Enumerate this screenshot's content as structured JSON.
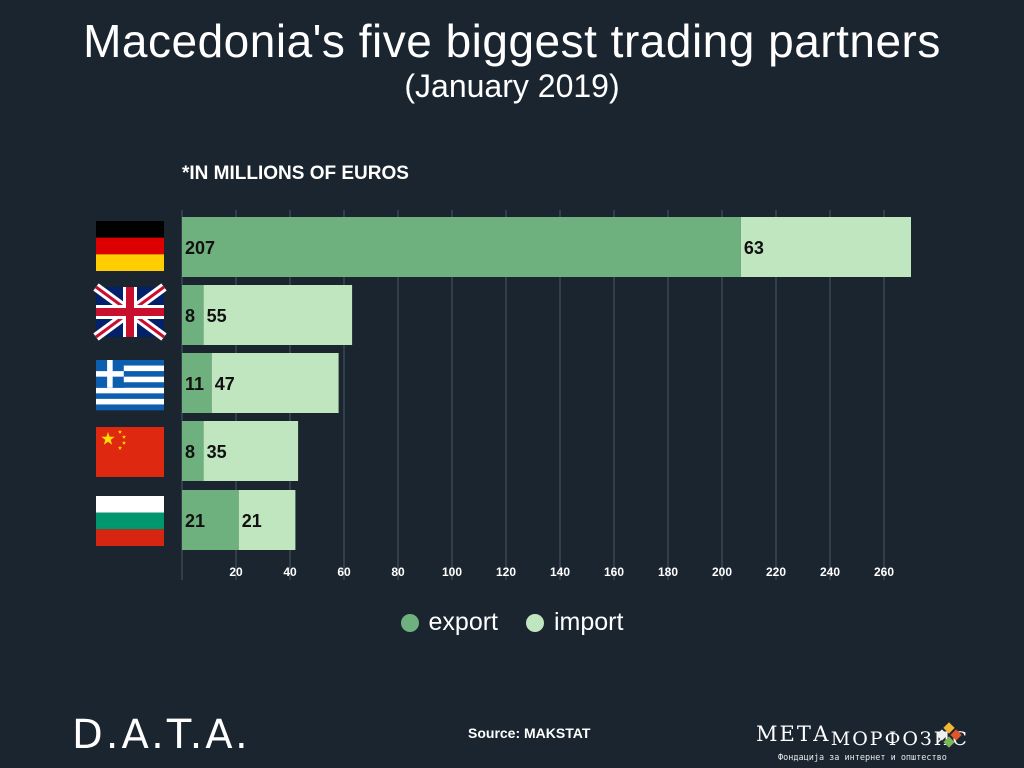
{
  "header": {
    "title": "Macedonia's five biggest trading partners",
    "subtitle": "(January 2019)",
    "unit_note": "*IN MILLIONS OF EUROS"
  },
  "colors": {
    "background": "#1b2530",
    "export": "#6fb07f",
    "import": "#c0e6bf",
    "grid": "#4a5663"
  },
  "flags": [
    {
      "country": "Germany",
      "icon": "germany-flag"
    },
    {
      "country": "United Kingdom",
      "icon": "uk-flag"
    },
    {
      "country": "Greece",
      "icon": "greece-flag"
    },
    {
      "country": "China",
      "icon": "china-flag"
    },
    {
      "country": "Bulgaria",
      "icon": "bulgaria-flag"
    }
  ],
  "chart_data": {
    "type": "bar",
    "orientation": "horizontal",
    "stacked": true,
    "categories": [
      "Germany",
      "United Kingdom",
      "Greece",
      "China",
      "Bulgaria"
    ],
    "series": [
      {
        "name": "export",
        "values": [
          207,
          8,
          11,
          8,
          21
        ]
      },
      {
        "name": "import",
        "values": [
          63,
          55,
          47,
          35,
          21
        ]
      }
    ],
    "x_ticks": [
      20,
      40,
      60,
      80,
      100,
      120,
      140,
      160,
      180,
      200,
      220,
      240,
      260
    ],
    "xlim": [
      0,
      280
    ],
    "grid": true,
    "legend": "bottom-center"
  },
  "legend": {
    "export_label": "export",
    "import_label": "import"
  },
  "footer": {
    "brand_left": "D.A.T.A.",
    "source": "Source: MAKSTAT",
    "brand_right_part1": "МЕТА",
    "brand_right_part2": "МОРФОЗИС",
    "brand_right_tagline": "Фондација за интернет и општество"
  }
}
